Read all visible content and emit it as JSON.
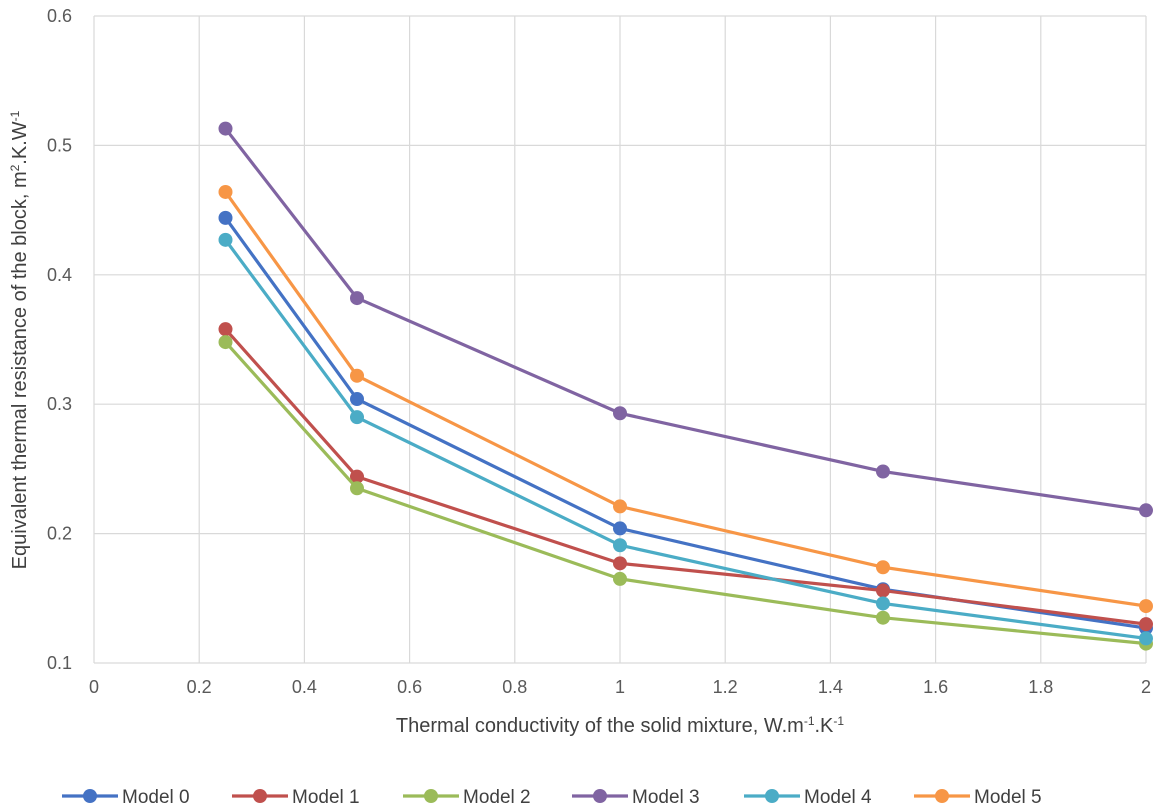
{
  "chart_data": {
    "type": "line",
    "xlabel_parts": [
      {
        "text": "Thermal conductivity of the solid mixture, W.m",
        "sup": false
      },
      {
        "text": "-1",
        "sup": true
      },
      {
        "text": ".K",
        "sup": false
      },
      {
        "text": "-1",
        "sup": true
      }
    ],
    "ylabel_parts": [
      {
        "text": "Equivalent thermal resistance of the block, m",
        "sup": false
      },
      {
        "text": "2",
        "sup": true
      },
      {
        "text": ".K.W",
        "sup": false
      },
      {
        "text": "-1",
        "sup": true
      }
    ],
    "xlim": [
      0,
      2
    ],
    "ylim": [
      0.1,
      0.6
    ],
    "xticks": [
      "0",
      "0.2",
      "0.4",
      "0.6",
      "0.8",
      "1",
      "1.2",
      "1.4",
      "1.6",
      "1.8",
      "2"
    ],
    "yticks": [
      "0.1",
      "0.2",
      "0.3",
      "0.4",
      "0.5",
      "0.6"
    ],
    "grid": true,
    "legend_position": "bottom",
    "x": [
      0.25,
      0.5,
      1,
      1.5,
      2
    ],
    "series": [
      {
        "name": "Model 0",
        "color": "#4472C4",
        "values": [
          0.444,
          0.304,
          0.204,
          0.157,
          0.127
        ]
      },
      {
        "name": "Model 1",
        "color": "#C0504D",
        "values": [
          0.358,
          0.244,
          0.177,
          0.156,
          0.13
        ]
      },
      {
        "name": "Model 2",
        "color": "#9BBB59",
        "values": [
          0.348,
          0.235,
          0.165,
          0.135,
          0.115
        ]
      },
      {
        "name": "Model 3",
        "color": "#8064A2",
        "values": [
          0.513,
          0.382,
          0.293,
          0.248,
          0.218
        ]
      },
      {
        "name": "Model 4",
        "color": "#4BACC6",
        "values": [
          0.427,
          0.29,
          0.191,
          0.146,
          0.119
        ]
      },
      {
        "name": "Model 5",
        "color": "#F79646",
        "values": [
          0.464,
          0.322,
          0.221,
          0.174,
          0.144
        ]
      }
    ]
  }
}
